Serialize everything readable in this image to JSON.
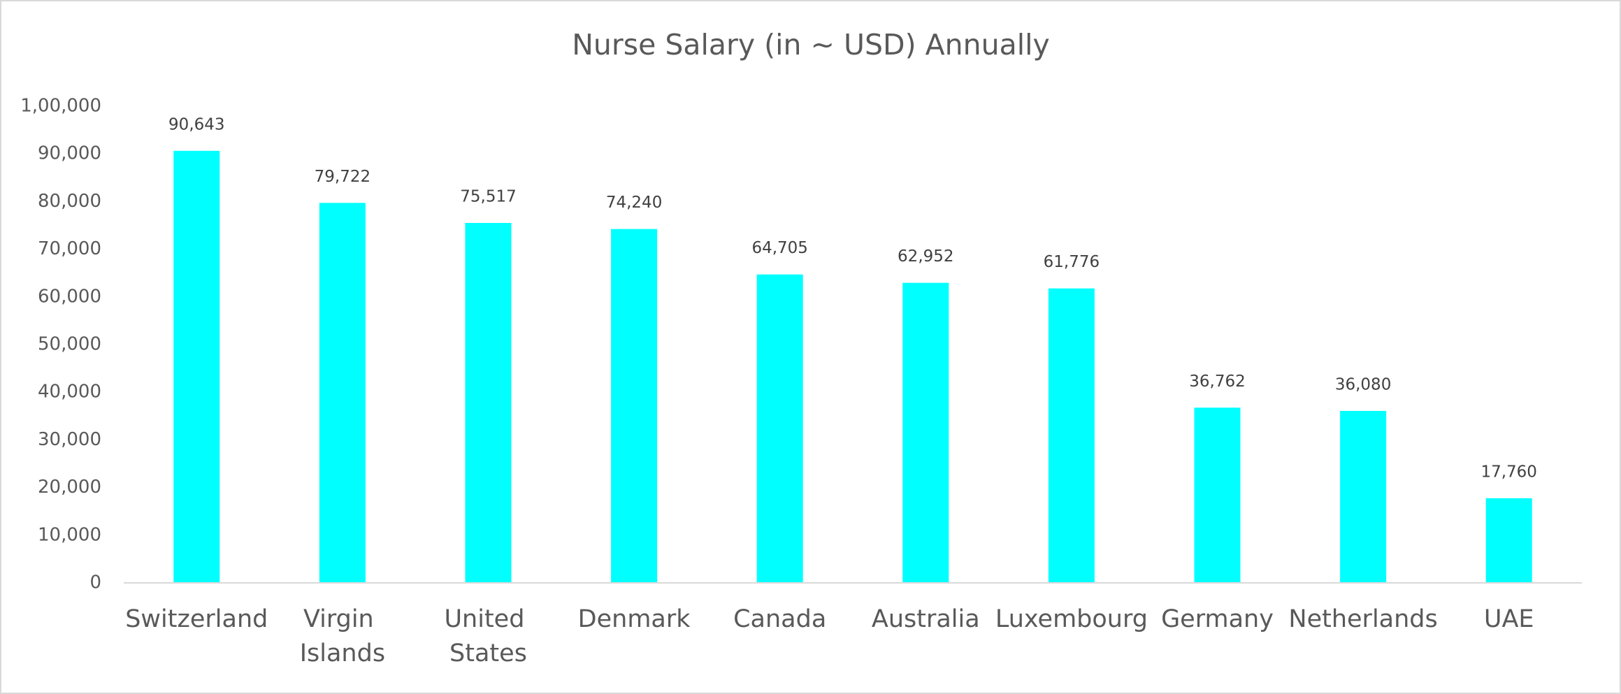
{
  "chart_data": {
    "type": "bar",
    "title": "Nurse Salary (in ~ USD) Annually",
    "categories": [
      "Switzerland",
      "Virgin Islands",
      "United States",
      "Denmark",
      "Canada",
      "Australia",
      "Luxembourg",
      "Germany",
      "Netherlands",
      "UAE"
    ],
    "values": [
      90643,
      79722,
      75517,
      74240,
      64705,
      62952,
      61776,
      36762,
      36080,
      17760
    ],
    "value_labels": [
      "90,643",
      "79,722",
      "75,517",
      "74,240",
      "64,705",
      "62,952",
      "61,776",
      "36,762",
      "36,080",
      "17,760"
    ],
    "color": "#00ffff",
    "ylim": [
      0,
      100000
    ],
    "yticks": [
      0,
      {
        "value": 10000,
        "label": "10,000"
      },
      {
        "value": 20000,
        "label": "20,000"
      },
      {
        "value": 30000,
        "label": "30,000"
      },
      {
        "value": 40000,
        "label": "40,000"
      },
      {
        "value": 50000,
        "label": "50,000"
      },
      {
        "value": 60000,
        "label": "60,000"
      },
      {
        "value": 70000,
        "label": "70,000"
      },
      {
        "value": 80000,
        "label": "80,000"
      },
      {
        "value": 90000,
        "label": "90,000"
      },
      {
        "value": 100000,
        "label": "1,00,000"
      }
    ],
    "grid": false
  }
}
